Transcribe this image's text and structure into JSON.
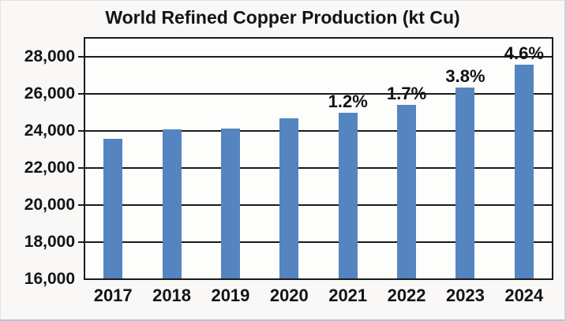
{
  "chart_data": {
    "type": "bar",
    "title": "World Refined Copper Production (kt Cu)",
    "categories": [
      "2017",
      "2018",
      "2019",
      "2020",
      "2021",
      "2022",
      "2023",
      "2024"
    ],
    "values": [
      23550,
      24060,
      24130,
      24650,
      24950,
      25380,
      26340,
      27550
    ],
    "bar_labels": [
      "",
      "",
      "",
      "",
      "1.2%",
      "1.7%",
      "3.8%",
      "4.6%"
    ],
    "xlabel": "",
    "ylabel": "",
    "ylim": [
      16000,
      29000
    ],
    "ytick_interval": 2000,
    "ytick_labels": [
      "16,000",
      "18,000",
      "20,000",
      "22,000",
      "24,000",
      "26,000",
      "28,000"
    ],
    "grid": true,
    "legend": "none",
    "bar_color": "#5585c0",
    "axis_color": "#1b1b1b",
    "background_color": "#f9f8f6"
  }
}
